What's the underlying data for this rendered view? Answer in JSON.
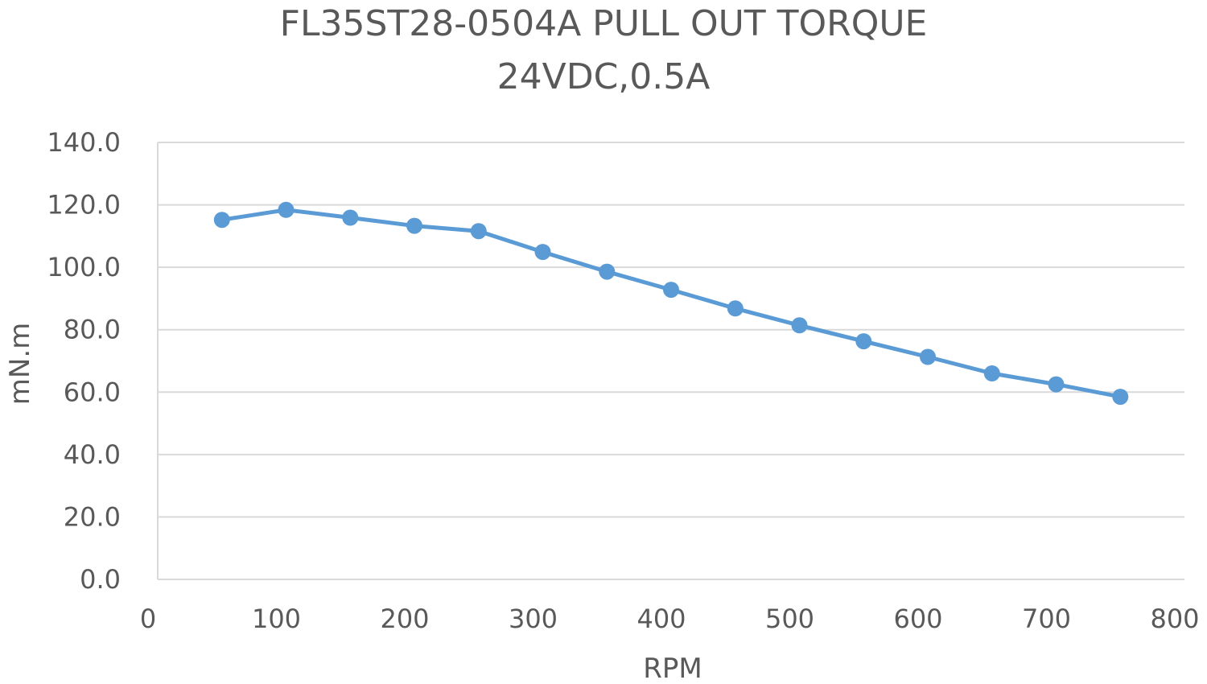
{
  "chart_data": {
    "type": "line",
    "title": "FL35ST28-0504A PULL OUT TORQUE",
    "subtitle": "24VDC,0.5A",
    "xlabel": "RPM",
    "ylabel": "mN.m",
    "xlim": [
      0,
      800
    ],
    "ylim": [
      0,
      140
    ],
    "x_ticks": [
      0,
      100,
      200,
      300,
      400,
      500,
      600,
      700,
      800
    ],
    "x_tick_labels": [
      "0",
      "100",
      "200",
      "300",
      "400",
      "500",
      "600",
      "700",
      "800"
    ],
    "y_ticks": [
      0,
      20,
      40,
      60,
      80,
      100,
      120,
      140
    ],
    "y_tick_labels": [
      "0.0",
      "20.0",
      "40.0",
      "60.0",
      "80.0",
      "100.0",
      "120.0",
      "140.0"
    ],
    "grid": true,
    "legend": "none",
    "series": [
      {
        "color": "#5b9bd5",
        "x": [
          50,
          100,
          150,
          200,
          250,
          300,
          350,
          400,
          450,
          500,
          550,
          600,
          650,
          700,
          750
        ],
        "values": [
          115.2,
          118.4,
          115.9,
          113.3,
          111.6,
          104.9,
          98.6,
          92.8,
          86.8,
          81.4,
          76.3,
          71.3,
          66.0,
          62.5,
          58.5
        ]
      }
    ]
  }
}
